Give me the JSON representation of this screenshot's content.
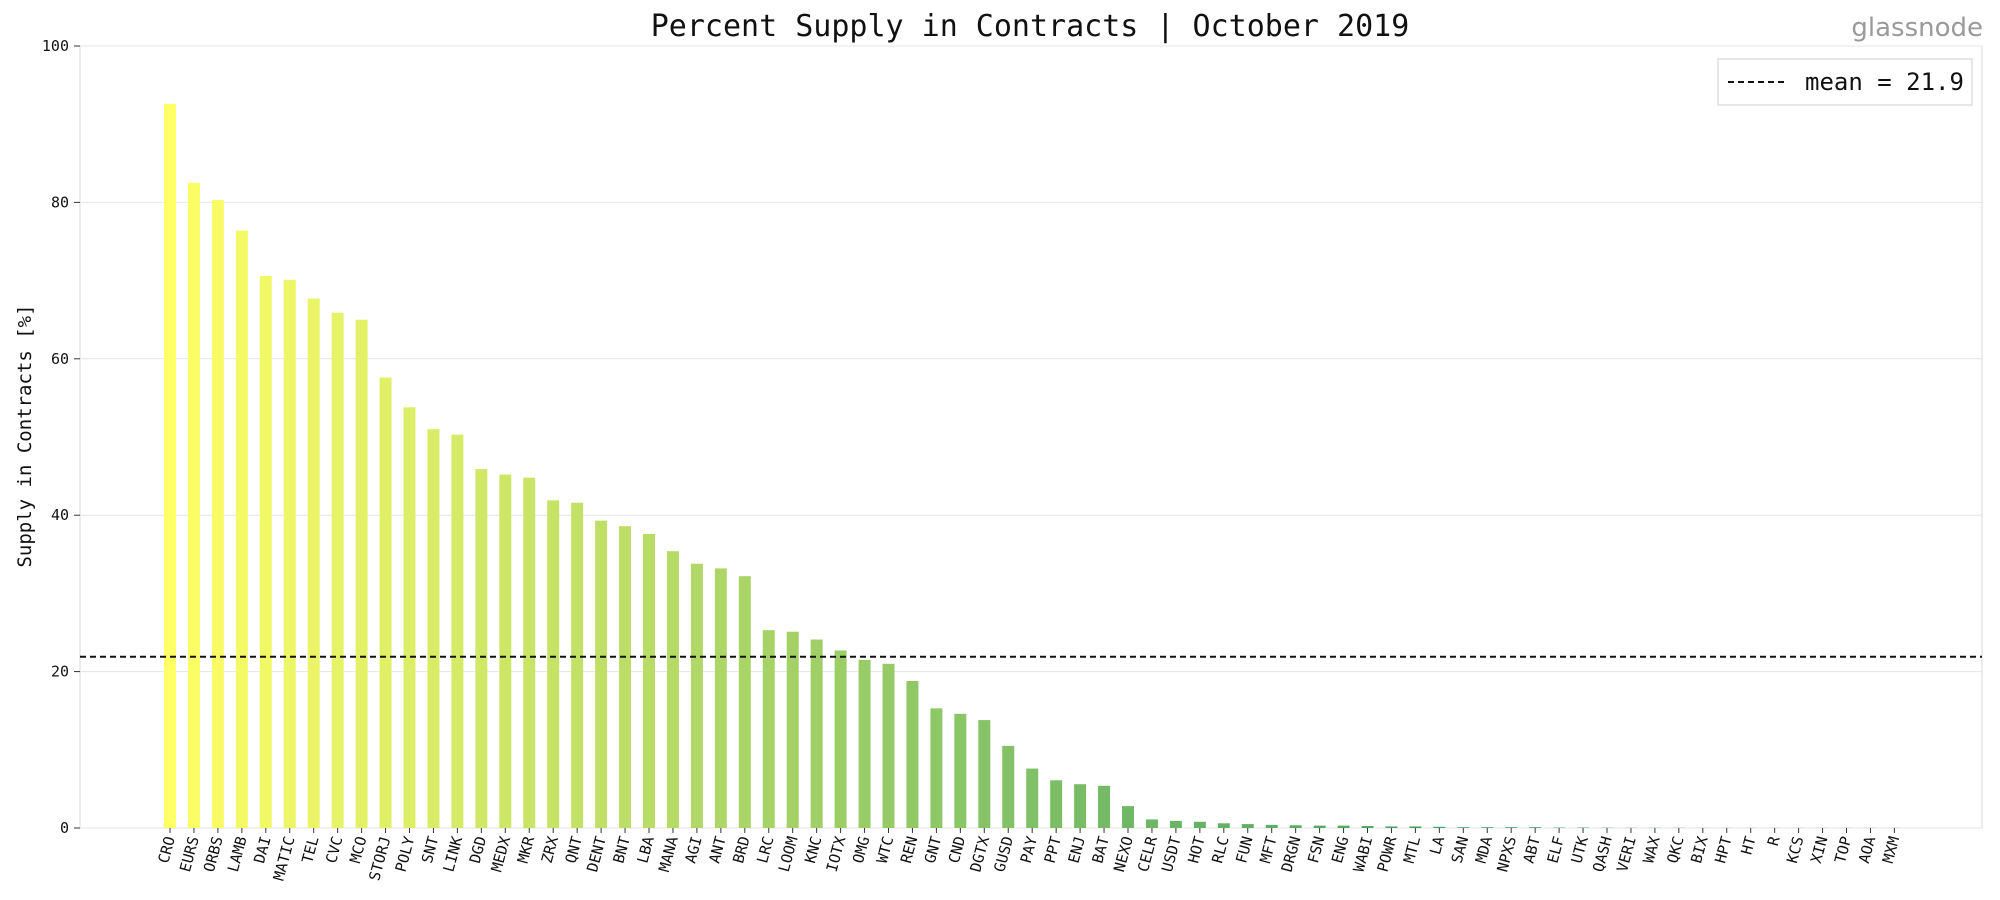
{
  "brand": "glassnode",
  "chart_data": {
    "type": "bar",
    "title": "Percent Supply in Contracts | October 2019",
    "xlabel": "",
    "ylabel": "Supply in Contracts [%]",
    "ylim": [
      0,
      100
    ],
    "yticks": [
      0,
      20,
      40,
      60,
      80,
      100
    ],
    "grid": true,
    "legend_position": "top-right",
    "mean": 21.9,
    "mean_label": "mean = 21.9",
    "categories": [
      "CRO",
      "EURS",
      "ORBS",
      "LAMB",
      "DAI",
      "MATIC",
      "TEL",
      "CVC",
      "MCO",
      "STORJ",
      "POLY",
      "SNT",
      "LINK",
      "DGD",
      "MEDX",
      "MKR",
      "ZRX",
      "QNT",
      "DENT",
      "BNT",
      "LBA",
      "MANA",
      "AGI",
      "ANT",
      "BRD",
      "LRC",
      "LOOM",
      "KNC",
      "IOTX",
      "OMG",
      "WTC",
      "REN",
      "GNT",
      "CND",
      "DGTX",
      "GUSD",
      "PAY",
      "PPT",
      "ENJ",
      "BAT",
      "NEXO",
      "CELR",
      "USDT",
      "HOT",
      "RLC",
      "FUN",
      "MFT",
      "DRGN",
      "FSN",
      "ENG",
      "WABI",
      "POWR",
      "MTL",
      "LA",
      "SAN",
      "MDA",
      "NPXS",
      "ABT",
      "ELF",
      "UTK",
      "QASH",
      "VERI",
      "WAX",
      "QKC",
      "BIX",
      "HPT",
      "HT",
      "R",
      "KCS",
      "XIN",
      "TOP",
      "AOA",
      "MXM"
    ],
    "values": [
      92.6,
      82.5,
      80.3,
      76.4,
      70.6,
      70.1,
      67.7,
      65.9,
      65.0,
      57.6,
      53.8,
      51.0,
      50.3,
      45.9,
      45.2,
      44.8,
      41.9,
      41.6,
      39.3,
      38.6,
      37.6,
      35.4,
      33.8,
      33.2,
      32.2,
      25.3,
      25.1,
      24.1,
      22.7,
      21.5,
      21.0,
      18.8,
      15.3,
      14.6,
      13.8,
      10.5,
      7.6,
      6.1,
      5.6,
      5.4,
      2.8,
      1.1,
      0.9,
      0.8,
      0.6,
      0.5,
      0.4,
      0.35,
      0.3,
      0.3,
      0.25,
      0.2,
      0.2,
      0.15,
      0.1,
      0.1,
      0.1,
      0.1,
      0.05,
      0.05,
      0.03,
      0.02,
      0.02,
      0.02,
      0.01,
      0.01,
      0.01,
      0.01,
      0.01,
      0.01,
      0.01,
      0.01,
      0.01
    ]
  }
}
